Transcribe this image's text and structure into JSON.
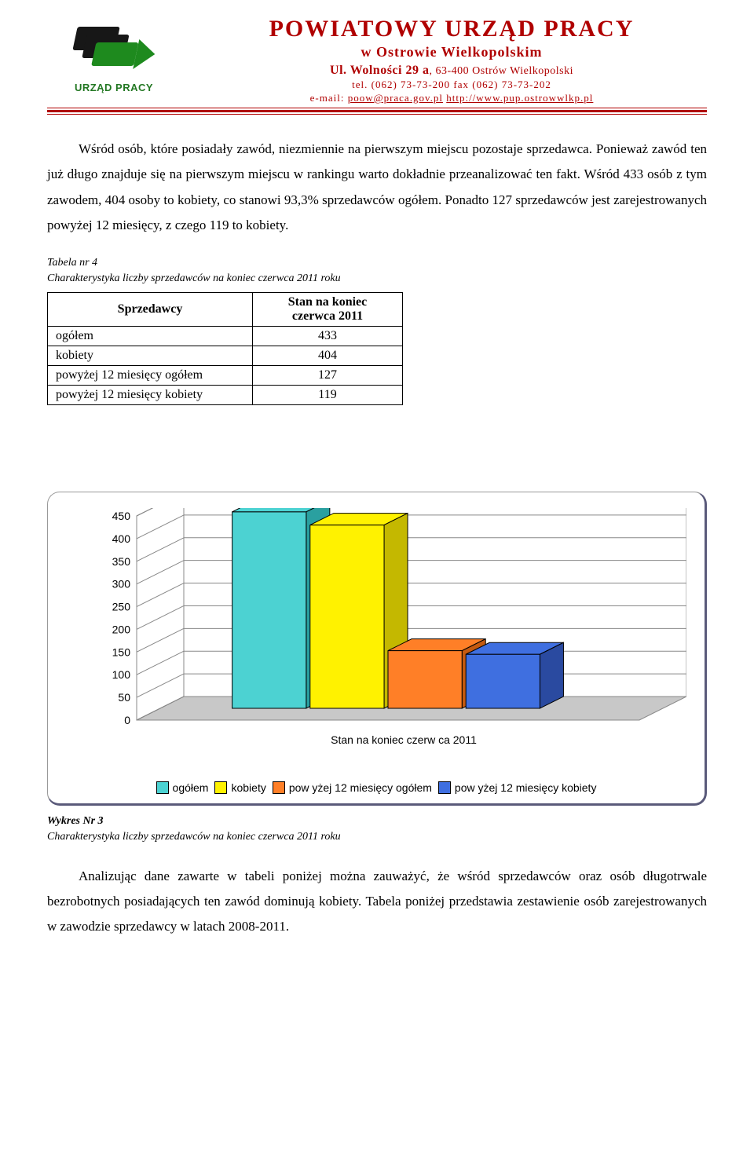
{
  "header": {
    "logo_caption": "URZĄD PRACY",
    "title": "POWIATOWY URZĄD PRACY",
    "sub1": "w Ostrowie Wielkopolskim",
    "address_bold": "Ul. Wolności 29 a",
    "address_rest": ", 63-400 Ostrów Wielkopolski",
    "phone": "tel. (062) 73-73-200 fax (062) 73-73-202",
    "email_prefix": "e-mail: ",
    "email": "poow@praca.gov.pl",
    "url": "http://www.pup.ostrowwlkp.pl"
  },
  "paragraph1": "Wśród osób, które posiadały zawód, niezmiennie na pierwszym miejscu pozostaje sprzedawca. Ponieważ zawód ten już długo znajduje się na pierwszym miejscu w rankingu warto dokładnie przeanalizować ten fakt. Wśród 433 osób z tym zawodem, 404 osoby to kobiety, co stanowi 93,3% sprzedawców ogółem. Ponadto 127 sprzedawców jest zarejestrowanych powyżej 12 miesięcy, z czego 119 to  kobiety.",
  "table_caption_l1": "Tabela nr 4",
  "table_caption_l2": "Charakterystyka liczby sprzedawców na koniec czerwca 2011 roku",
  "table": {
    "col1_header": "Sprzedawcy",
    "col2_header_l1": "Stan na koniec",
    "col2_header_l2": "czerwca 2011",
    "rows": [
      {
        "label": "ogółem",
        "value": "433"
      },
      {
        "label": "kobiety",
        "value": "404"
      },
      {
        "label": "powyżej 12 miesięcy ogółem",
        "value": "127"
      },
      {
        "label": "powyżej 12 miesięcy kobiety",
        "value": "119"
      }
    ]
  },
  "chart": {
    "type": "bar-3d",
    "yticks": [
      "0",
      "50",
      "100",
      "150",
      "200",
      "250",
      "300",
      "350",
      "400",
      "450"
    ],
    "ylim": [
      0,
      450
    ],
    "x_label": "Stan na koniec czerw ca 2011",
    "series": [
      {
        "name": "ogółem",
        "value": 433,
        "color": "#4cd2d2",
        "color_dark": "#2aa0a0"
      },
      {
        "name": "kobiety",
        "value": 404,
        "color": "#fff200",
        "color_dark": "#c4b800"
      },
      {
        "name": "pow yżej 12 miesięcy ogółem",
        "value": 127,
        "color": "#ff7f27",
        "color_dark": "#c45a10"
      },
      {
        "name": "pow yżej 12 miesięcy kobiety",
        "value": 119,
        "color": "#3f6fe0",
        "color_dark": "#2a4aa0"
      }
    ],
    "axis_fontsize": 14,
    "label_fontsize": 14,
    "grid_color": "#888888",
    "wall_color": "#ffffff",
    "floor_color": "#c8c8c8",
    "back_color": "#ffffff"
  },
  "chart_caption_l1": "Wykres Nr 3",
  "chart_caption_l2": "Charakterystyka liczby sprzedawców na koniec czerwca 2011 roku",
  "paragraph2": "Analizując dane zawarte w tabeli poniżej można zauważyć, że wśród sprzedawców oraz osób długotrwale bezrobotnych posiadających ten zawód dominują kobiety. Tabela poniżej przedstawia zestawienie osób zarejestrowanych w zawodzie sprzedawcy w latach 2008-2011."
}
